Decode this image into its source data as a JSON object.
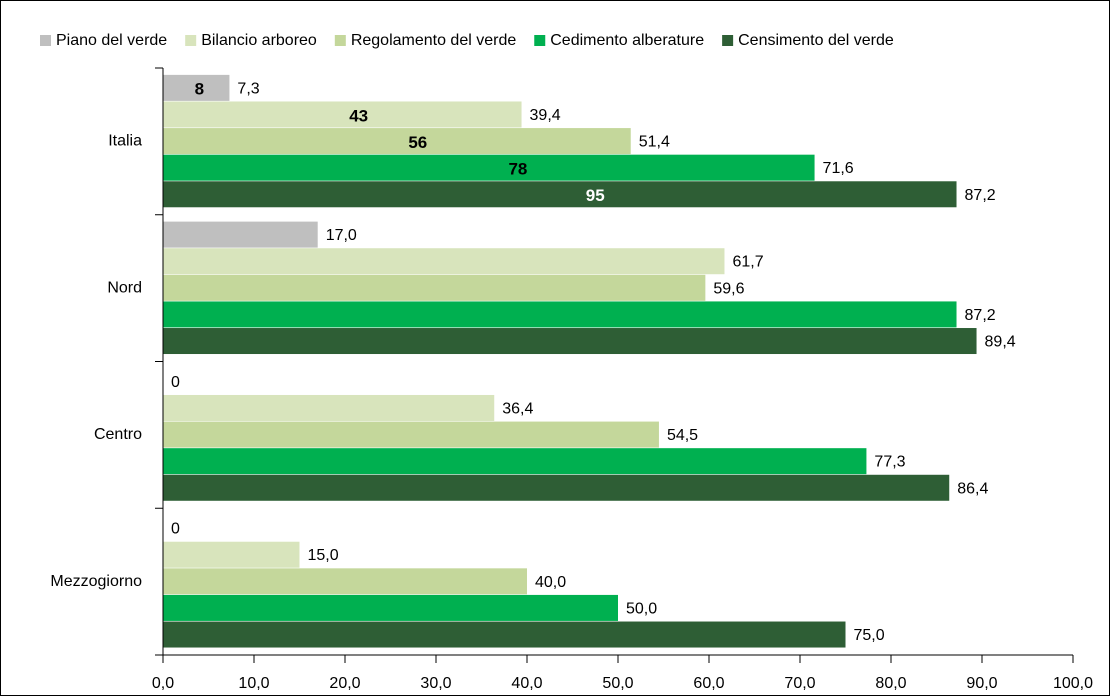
{
  "chart_data": {
    "type": "bar",
    "orientation": "horizontal",
    "categories": [
      "Italia",
      "Nord",
      "Centro",
      "Mezzogiorno"
    ],
    "series": [
      {
        "name": "Piano del verde",
        "color": "#bfbfbf",
        "values": [
          7.3,
          17.0,
          0,
          0
        ],
        "value_labels": [
          "7,3",
          "17,0",
          "0",
          "0"
        ],
        "inner_values": [
          8,
          null,
          null,
          null
        ],
        "inner_color": "#000000"
      },
      {
        "name": "Bilancio arboreo",
        "color": "#d8e4bc",
        "values": [
          39.4,
          61.7,
          36.4,
          15.0
        ],
        "value_labels": [
          "39,4",
          "61,7",
          "36,4",
          "15,0"
        ],
        "inner_values": [
          43,
          null,
          null,
          null
        ],
        "inner_color": "#000000"
      },
      {
        "name": "Regolamento del verde",
        "color": "#c4d79b",
        "values": [
          51.4,
          59.6,
          54.5,
          40.0
        ],
        "value_labels": [
          "51,4",
          "59,6",
          "54,5",
          "40,0"
        ],
        "inner_values": [
          56,
          null,
          null,
          null
        ],
        "inner_color": "#000000"
      },
      {
        "name": "Cedimento alberature",
        "color": "#00b050",
        "values": [
          71.6,
          87.2,
          77.3,
          50.0
        ],
        "value_labels": [
          "71,6",
          "87,2",
          "77,3",
          "50,0"
        ],
        "inner_values": [
          78,
          null,
          null,
          null
        ],
        "inner_color": "#000000"
      },
      {
        "name": "Censimento del verde",
        "color": "#2e5e35",
        "values": [
          87.2,
          89.4,
          86.4,
          75.0
        ],
        "value_labels": [
          "87,2",
          "89,4",
          "86,4",
          "75,0"
        ],
        "inner_values": [
          95,
          null,
          null,
          null
        ],
        "inner_color": "#ffffff"
      }
    ],
    "xlim": [
      0,
      100
    ],
    "xticks": [
      {
        "value": 0,
        "label": "0,0"
      },
      {
        "value": 10,
        "label": "10,0"
      },
      {
        "value": 20,
        "label": "20,0"
      },
      {
        "value": 30,
        "label": "30,0"
      },
      {
        "value": 40,
        "label": "40,0"
      },
      {
        "value": 50,
        "label": "50,0"
      },
      {
        "value": 60,
        "label": "60,0"
      },
      {
        "value": 70,
        "label": "70,0"
      },
      {
        "value": 80,
        "label": "80,0"
      },
      {
        "value": 90,
        "label": "90,0"
      },
      {
        "value": 100,
        "label": "100,0"
      }
    ],
    "legend": "top",
    "grid": false
  }
}
